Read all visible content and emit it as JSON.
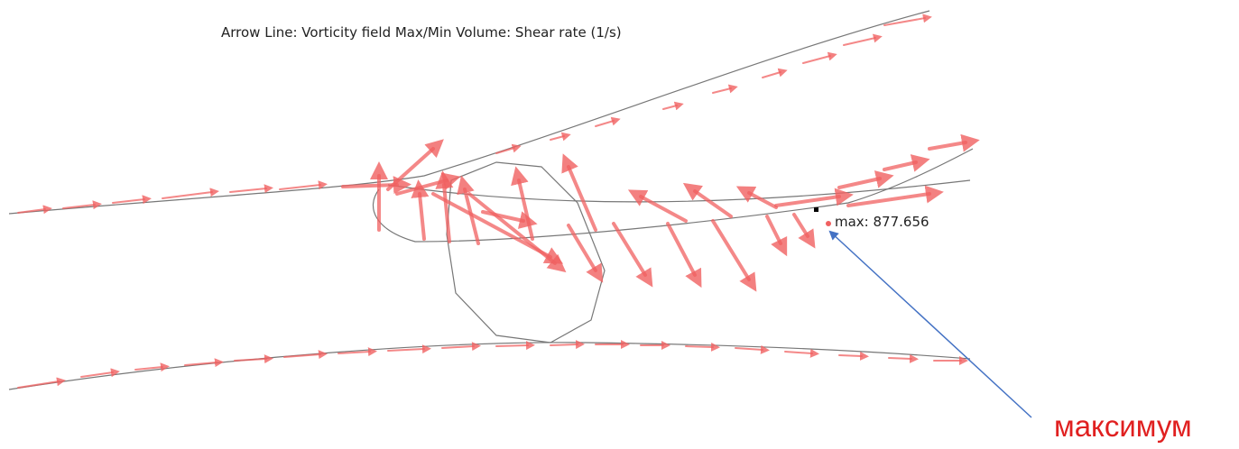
{
  "header": {
    "title": "Arrow Line: Vorticity field  Max/Min Volume: Shear rate (1/s)"
  },
  "max_label": "max: 877.656",
  "annotation": "максимум"
}
